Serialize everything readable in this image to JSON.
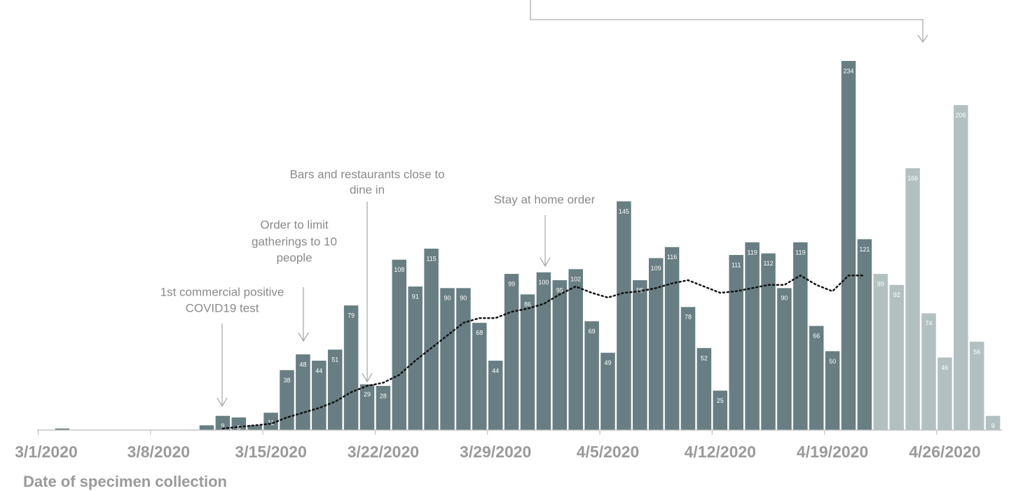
{
  "chart_data": {
    "type": "bar",
    "x_label": "Date of specimen collection",
    "categories": [
      "3/1/2020",
      null,
      null,
      null,
      null,
      null,
      null,
      "3/8/2020",
      null,
      null,
      null,
      null,
      null,
      null,
      "3/15/2020",
      null,
      null,
      null,
      null,
      null,
      null,
      "3/22/2020",
      null,
      null,
      null,
      null,
      null,
      null,
      "3/29/2020",
      null,
      null,
      null,
      null,
      null,
      null,
      "4/5/2020",
      null,
      null,
      null,
      null,
      null,
      null,
      "4/12/2020",
      null,
      null,
      null,
      null,
      null,
      null,
      "4/19/2020",
      null,
      null,
      null,
      null,
      null,
      null,
      "4/26/2020",
      null,
      null,
      null
    ],
    "values": [
      0,
      1,
      0,
      0,
      0,
      0,
      0,
      0,
      0,
      0,
      3,
      9,
      8,
      3,
      11,
      38,
      48,
      44,
      51,
      79,
      29,
      28,
      108,
      91,
      115,
      90,
      90,
      68,
      44,
      99,
      86,
      100,
      95,
      102,
      69,
      49,
      145,
      95,
      109,
      116,
      78,
      52,
      25,
      111,
      119,
      112,
      90,
      119,
      66,
      50,
      234,
      121,
      99,
      92,
      166,
      74,
      46,
      206,
      56,
      9
    ],
    "colors": [
      "#687e82",
      "#687e82",
      "#687e82",
      "#687e82",
      "#687e82",
      "#687e82",
      "#687e82",
      "#687e82",
      "#687e82",
      "#687e82",
      "#687e82",
      "#687e82",
      "#687e82",
      "#687e82",
      "#687e82",
      "#687e82",
      "#687e82",
      "#687e82",
      "#687e82",
      "#687e82",
      "#687e82",
      "#687e82",
      "#687e82",
      "#687e82",
      "#687e82",
      "#687e82",
      "#687e82",
      "#687e82",
      "#687e82",
      "#687e82",
      "#687e82",
      "#687e82",
      "#687e82",
      "#687e82",
      "#687e82",
      "#687e82",
      "#687e82",
      "#687e82",
      "#687e82",
      "#687e82",
      "#687e82",
      "#687e82",
      "#687e82",
      "#687e82",
      "#687e82",
      "#687e82",
      "#687e82",
      "#687e82",
      "#687e82",
      "#687e82",
      "#687e82",
      "#687e82",
      "#b3c0c2",
      "#b3c0c2",
      "#b3c0c2",
      "#b3c0c2",
      "#b3c0c2",
      "#b3c0c2",
      "#b3c0c2",
      "#b3c0c2"
    ],
    "trend": [
      null,
      null,
      null,
      null,
      null,
      null,
      null,
      null,
      null,
      null,
      null,
      1,
      2,
      3,
      4,
      8,
      11,
      14,
      18,
      24,
      28,
      30,
      35,
      44,
      52,
      60,
      68,
      71,
      71,
      75,
      77,
      80,
      86,
      91,
      87,
      84,
      87,
      88,
      90,
      93,
      95,
      91,
      87,
      88,
      90,
      92,
      92,
      98,
      92,
      88,
      98,
      98,
      null,
      null,
      null,
      null,
      null,
      null,
      null,
      null
    ],
    "trend_color": "#111111",
    "ylim": [
      0,
      234
    ],
    "annotations": [
      {
        "lines": [
          "1st commercial positive",
          "COVID19 test"
        ]
      },
      {
        "lines": [
          "Order to limit",
          "gatherings to 10",
          "people"
        ]
      },
      {
        "lines": [
          "Bars and restaurants close to",
          "dine in"
        ]
      },
      {
        "lines": [
          "Stay at home order"
        ]
      }
    ]
  }
}
